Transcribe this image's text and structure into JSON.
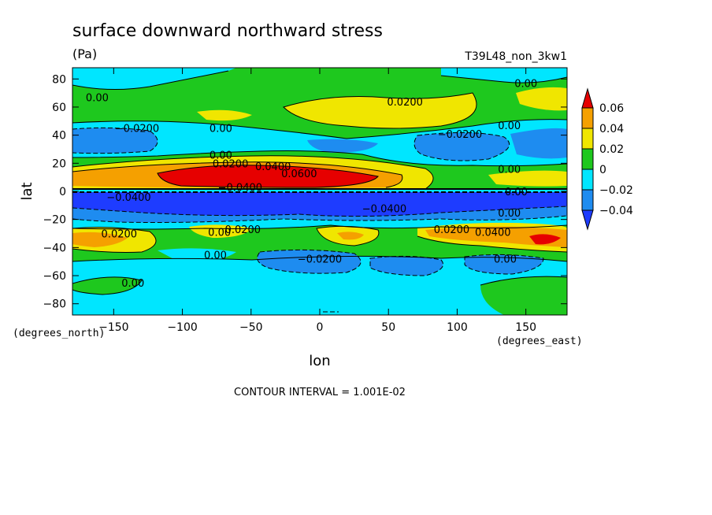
{
  "chart_data": {
    "type": "heatmap",
    "title": "surface downward northward stress",
    "units": "(Pa)",
    "run_label": "T39L48_non_3kw1",
    "xlabel": "lon",
    "ylabel": "lat",
    "x_unit_label": "(degrees_east)",
    "y_unit_label": "(degrees_north)",
    "xlim": [
      -180,
      180
    ],
    "ylim": [
      -88,
      88
    ],
    "x_ticks": [
      -150,
      -100,
      -50,
      0,
      50,
      100,
      150
    ],
    "x_tick_labels": [
      "−150",
      "−100",
      "−50",
      "0",
      "50",
      "100",
      "150"
    ],
    "y_ticks": [
      80,
      60,
      40,
      20,
      0,
      -20,
      -40,
      -60,
      -80
    ],
    "y_tick_labels": [
      "80",
      "60",
      "40",
      "20",
      "0",
      "−20",
      "−40",
      "−60",
      "−80"
    ],
    "contour_interval_text": "CONTOUR INTERVAL = 1.001E-02",
    "colorbar": {
      "levels": [
        0.06,
        0.04,
        0.02,
        0,
        -0.02,
        -0.04
      ],
      "labels": [
        "0.06",
        "0.04",
        "0.02",
        "0",
        "−0.02",
        "−0.04"
      ],
      "colors": {
        "gt_0.06": "#e60000",
        "0.04_0.06": "#f5a000",
        "0.02_0.04": "#f0e600",
        "0_0.02": "#1ec81e",
        "-0.02_0": "#00e6ff",
        "-0.04_-0.02": "#1e8cf0",
        "lt_-0.04": "#1e3cff"
      }
    },
    "contour_labels": [
      {
        "text": "0.00",
        "lon": -162,
        "lat": 67
      },
      {
        "text": "0.0200",
        "lon": 62,
        "lat": 64
      },
      {
        "text": "0.00",
        "lon": 150,
        "lat": 77
      },
      {
        "text": "−0.0200",
        "lon": -133,
        "lat": 45
      },
      {
        "text": "0.00",
        "lon": -72,
        "lat": 45
      },
      {
        "text": "−0.0200",
        "lon": 102,
        "lat": 41
      },
      {
        "text": "0.00",
        "lon": 138,
        "lat": 47
      },
      {
        "text": "0.00",
        "lon": -72,
        "lat": 26
      },
      {
        "text": "0.0200",
        "lon": -65,
        "lat": 20
      },
      {
        "text": "0.0400",
        "lon": -34,
        "lat": 18
      },
      {
        "text": "0.0600",
        "lon": -15,
        "lat": 13
      },
      {
        "text": "0.00",
        "lon": 138,
        "lat": 16
      },
      {
        "text": "−0.0400",
        "lon": -139,
        "lat": -4
      },
      {
        "text": "−0.0400",
        "lon": -58,
        "lat": 3
      },
      {
        "text": "0.00",
        "lon": 143,
        "lat": 0
      },
      {
        "text": "−0.0400",
        "lon": 47,
        "lat": -12
      },
      {
        "text": "0.00",
        "lon": 138,
        "lat": -15
      },
      {
        "text": "0.0200",
        "lon": -146,
        "lat": -30
      },
      {
        "text": "0.0200",
        "lon": -56,
        "lat": -27
      },
      {
        "text": "0.00",
        "lon": -73,
        "lat": -29
      },
      {
        "text": "0.0200",
        "lon": 96,
        "lat": -27
      },
      {
        "text": "0.0400",
        "lon": 126,
        "lat": -29
      },
      {
        "text": "0.00",
        "lon": -76,
        "lat": -45
      },
      {
        "text": "−0.0200",
        "lon": 0,
        "lat": -48
      },
      {
        "text": "0.00",
        "lon": 135,
        "lat": -48
      },
      {
        "text": "0.00",
        "lon": -136,
        "lat": -65
      }
    ]
  }
}
